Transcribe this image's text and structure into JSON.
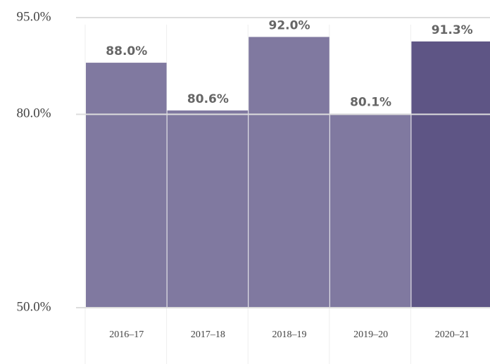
{
  "chart_data": {
    "type": "bar",
    "categories": [
      "2016–17",
      "2017–18",
      "2018–19",
      "2019–20",
      "2020–21"
    ],
    "values": [
      88.0,
      80.6,
      92.0,
      80.1,
      91.3
    ],
    "value_labels": [
      "88.0%",
      "80.6%",
      "92.0%",
      "80.1%",
      "91.3%"
    ],
    "colors": [
      "#8079a0",
      "#8079a0",
      "#8079a0",
      "#8079a0",
      "#5e5585"
    ],
    "ylim": [
      50,
      95
    ],
    "yticks": [
      {
        "value": 50,
        "label": "50.0%"
      },
      {
        "value": 80,
        "label": "80.0%"
      },
      {
        "value": 95,
        "label": "95.0%"
      }
    ],
    "grid": true
  }
}
